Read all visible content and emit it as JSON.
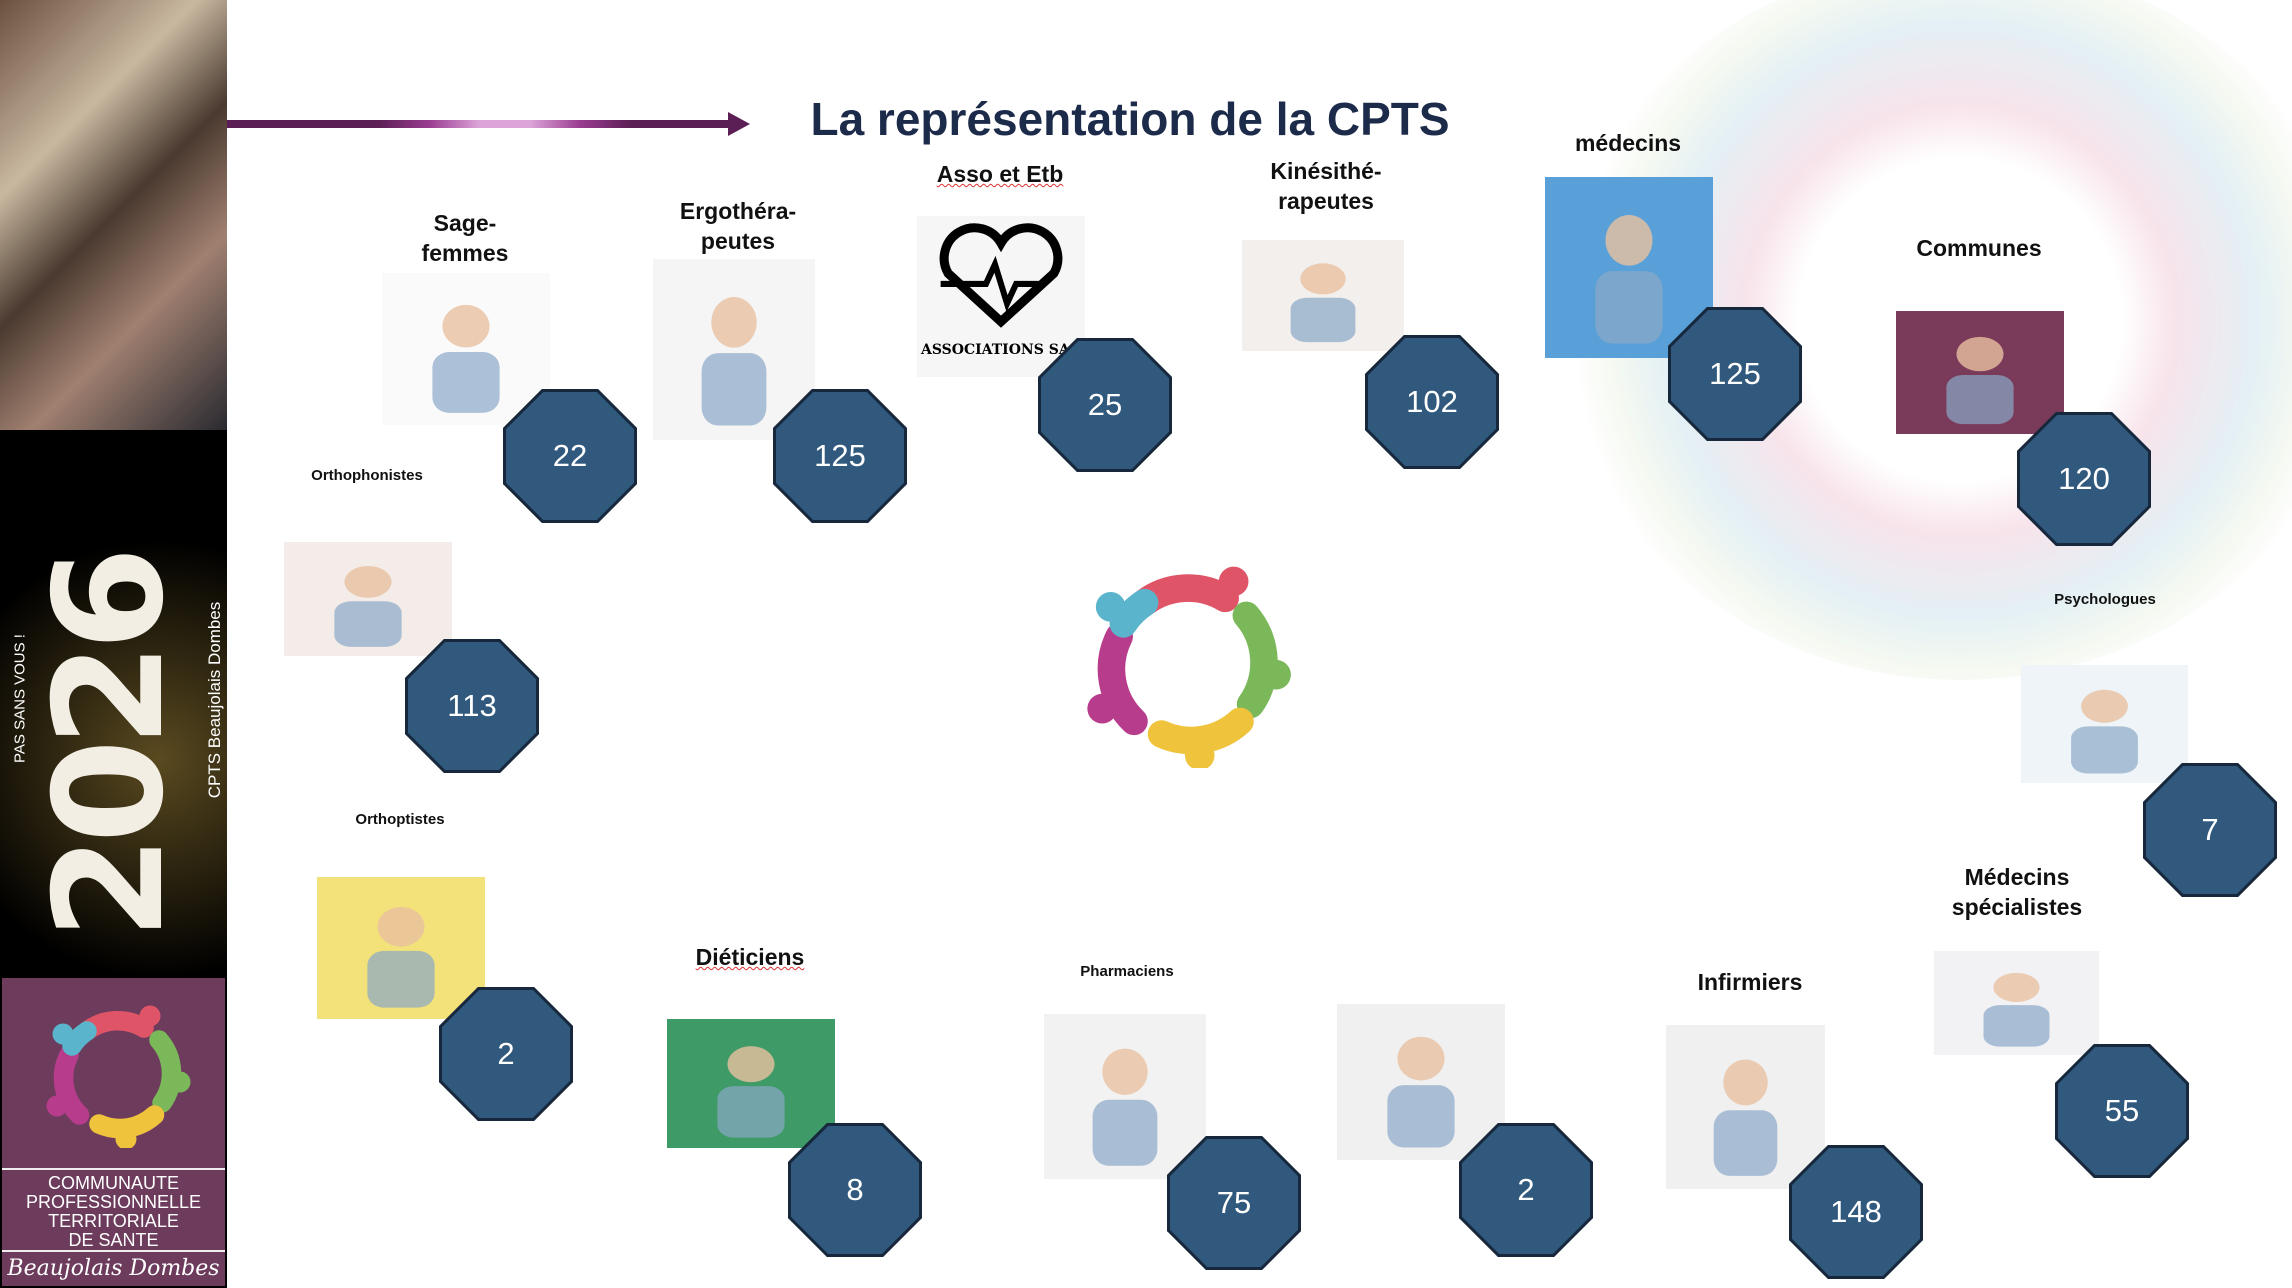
{
  "title": "La représentation de la CPTS",
  "sidebar": {
    "year": "2026",
    "slogan": "PAS SANS VOUS !",
    "org": "CPTS Beaujolais Dombes",
    "logo_lines": [
      "COMMUNAUTE",
      "PROFESSIONNELLE",
      "TERRITORIALE",
      "DE SANTE"
    ],
    "logo_region": "Beaujolais Dombes"
  },
  "asso_image_text": "ASSOCIATIONS SA",
  "groups": [
    {
      "label": "Sage-\nfemmes",
      "count": "22"
    },
    {
      "label": "Ergothéra-\npeutes",
      "count": "125"
    },
    {
      "label": "Asso et Etb",
      "count": "25"
    },
    {
      "label": "Kinésithé-\nrapeutes",
      "count": "102"
    },
    {
      "label": "médecins",
      "count": "125"
    },
    {
      "label": "Communes",
      "count": "120"
    },
    {
      "label": "Orthophonistes",
      "count": "113"
    },
    {
      "label": "Psychologues",
      "count": "7"
    },
    {
      "label": "Orthoptistes",
      "count": "2"
    },
    {
      "label": "Diéticiens",
      "count": "8"
    },
    {
      "label": "Pharmaciens",
      "count": "75"
    },
    {
      "label": "",
      "count": "2"
    },
    {
      "label": "Infirmiers",
      "count": "148"
    },
    {
      "label": "Médecins\nspécialistes",
      "count": "55"
    }
  ],
  "colors": {
    "octagon": "#30597d",
    "title": "#1d2b4a",
    "brand": "#6d3c5c"
  }
}
